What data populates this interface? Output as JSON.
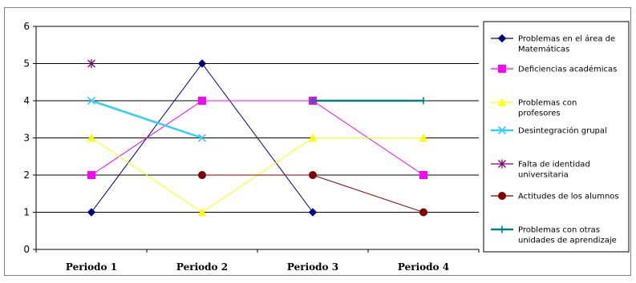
{
  "chart_data": {
    "type": "line",
    "title": "",
    "xlabel": "",
    "ylabel": "",
    "categories": [
      "Periodo 1",
      "Periodo 2",
      "Periodo 3",
      "Periodo 4"
    ],
    "ylim": [
      0,
      6
    ],
    "yticks": [
      "0",
      "1",
      "2",
      "3",
      "4",
      "5",
      "6"
    ],
    "grid": true,
    "legend_position": "right",
    "series": [
      {
        "name": "Problemas en el área de Matemáticas",
        "legend_lines": [
          "Problemas en el área de",
          "Matemáticas"
        ],
        "color": "#000080",
        "marker": "diamond",
        "values": [
          1,
          5,
          1,
          null
        ]
      },
      {
        "name": "Deficiencias académicas",
        "legend_lines": [
          "Deficiencias académicas"
        ],
        "color": "#ff00ff",
        "marker": "square",
        "values": [
          2,
          4,
          4,
          2
        ]
      },
      {
        "name": "Problemas con profesores",
        "legend_lines": [
          "Problemas con",
          "profesores"
        ],
        "color": "#ffff00",
        "marker": "triangle",
        "values": [
          3,
          1,
          3,
          3
        ]
      },
      {
        "name": "Desintegración grupal",
        "legend_lines": [
          "Desintegración grupal"
        ],
        "color": "#33ccff",
        "marker": "x",
        "values": [
          4,
          3,
          null,
          null
        ]
      },
      {
        "name": "Falta de identidad universitaria",
        "legend_lines": [
          "Falta de identidad",
          "universitaria"
        ],
        "color": "#800080",
        "marker": "star",
        "values": [
          5,
          null,
          null,
          null
        ]
      },
      {
        "name": "Actitudes de los alumnos",
        "legend_lines": [
          "Actitudes de los alumnos"
        ],
        "color": "#800000",
        "marker": "circle",
        "values": [
          null,
          2,
          2,
          1
        ]
      },
      {
        "name": "Problemas con otras unidades de aprendizaje",
        "legend_lines": [
          "Problemas con otras",
          "unidades de aprendizaje"
        ],
        "color": "#008080",
        "marker": "plus",
        "values": [
          null,
          null,
          4,
          4
        ]
      }
    ]
  }
}
